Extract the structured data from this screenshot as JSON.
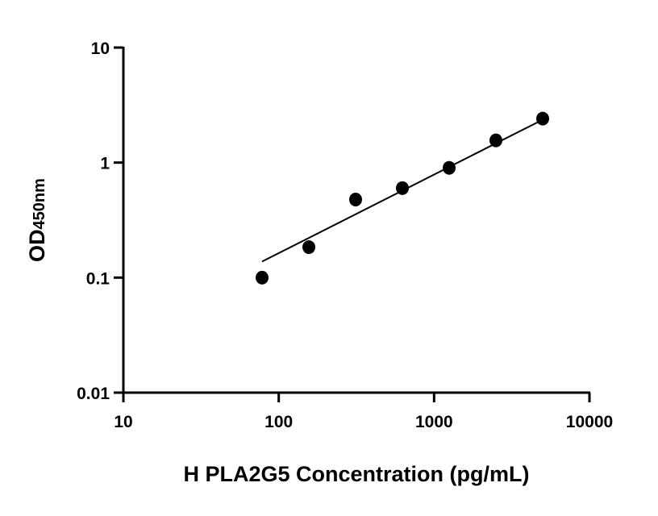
{
  "chart_data": {
    "type": "scatter",
    "xlabel": "H PLA2G5 Concentration (pg/mL)",
    "ylabel_main": "OD",
    "ylabel_sub": "450nm",
    "x_scale": "log",
    "y_scale": "log",
    "xlim": [
      10,
      10000
    ],
    "ylim": [
      0.01,
      10
    ],
    "x_ticks": [
      "10",
      "100",
      "1000",
      "10000"
    ],
    "y_ticks": [
      "0.01",
      "0.1",
      "1",
      "10"
    ],
    "grid": false,
    "points": [
      {
        "x": 78.125,
        "y": 0.1
      },
      {
        "x": 156.25,
        "y": 0.184
      },
      {
        "x": 312.5,
        "y": 0.477
      },
      {
        "x": 625,
        "y": 0.6
      },
      {
        "x": 1250,
        "y": 0.9
      },
      {
        "x": 2500,
        "y": 1.56
      },
      {
        "x": 5000,
        "y": 2.41
      }
    ],
    "fit_line": {
      "x": [
        78.125,
        5000
      ],
      "y": [
        0.138,
        2.36
      ]
    },
    "colors": {
      "points": "#000000",
      "line": "#000000",
      "axes": "#000000"
    }
  }
}
